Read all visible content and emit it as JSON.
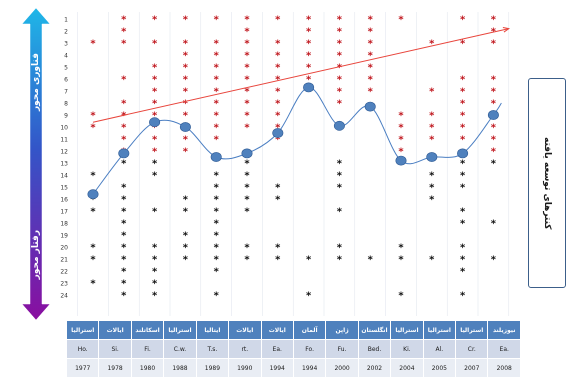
{
  "chart_data": {
    "type": "scatter",
    "rows": [
      "1",
      "2",
      "3",
      "4",
      "5",
      "6",
      "7",
      "8",
      "9",
      "10",
      "11",
      "12",
      "13",
      "14",
      "15",
      "16",
      "17",
      "18",
      "19",
      "20",
      "21",
      "22",
      "23",
      "24"
    ],
    "columns": [
      {
        "name": "استرالیا",
        "abbr": "Ho.",
        "year": "1977"
      },
      {
        "name": "ایالات",
        "abbr": "Si.",
        "year": "1978"
      },
      {
        "name": "اسکاتلند",
        "abbr": "Fi.",
        "year": "1980"
      },
      {
        "name": "استرالیا",
        "abbr": "C.w.",
        "year": "1988"
      },
      {
        "name": "ایتالیا",
        "abbr": "T.s.",
        "year": "1989"
      },
      {
        "name": "ایالات",
        "abbr": "rt.",
        "year": "1990"
      },
      {
        "name": "ایالات",
        "abbr": "Ea.",
        "year": "1994"
      },
      {
        "name": "آلمان",
        "abbr": "Fo.",
        "year": "1994"
      },
      {
        "name": "ژاپن",
        "abbr": "Fu.",
        "year": "2000"
      },
      {
        "name": "انگلستان",
        "abbr": "Bed.",
        "year": "2002"
      },
      {
        "name": "استرالیا",
        "abbr": "Ki.",
        "year": "2004"
      },
      {
        "name": "استرالیا",
        "abbr": "Al.",
        "year": "2005"
      },
      {
        "name": "استرالیا",
        "abbr": "Cr.",
        "year": "2007"
      },
      {
        "name": "نیوزیلند",
        "abbr": "Ea.",
        "year": "2008"
      }
    ],
    "red_stars": [
      [
        3,
        9,
        10
      ],
      [
        1,
        2,
        3,
        6,
        8,
        9,
        10,
        11,
        12
      ],
      [
        1,
        3,
        5,
        6,
        7,
        8,
        9,
        10,
        11,
        12
      ],
      [
        1,
        3,
        4,
        5,
        6,
        7,
        8,
        9,
        10,
        11,
        12
      ],
      [
        1,
        3,
        4,
        5,
        6,
        7,
        8,
        9,
        10,
        11
      ],
      [
        1,
        2,
        3,
        4,
        5,
        6,
        7,
        8,
        9,
        10
      ],
      [
        1,
        3,
        4,
        5,
        6,
        7,
        8,
        9,
        10,
        11
      ],
      [
        1,
        2,
        3,
        4,
        5,
        6
      ],
      [
        1,
        2,
        3,
        4,
        5,
        6,
        7,
        8
      ],
      [
        1,
        2,
        3,
        4,
        5,
        6,
        7
      ],
      [
        1,
        9,
        10,
        11,
        12
      ],
      [
        3,
        7,
        9,
        10,
        11
      ],
      [
        1,
        3,
        6,
        7,
        8,
        9,
        10,
        11
      ],
      [
        1,
        2,
        3,
        6,
        7,
        8,
        9,
        10,
        11,
        12
      ]
    ],
    "black_stars": [
      [
        14,
        16,
        17,
        20,
        21,
        23
      ],
      [
        13,
        15,
        16,
        17,
        18,
        19,
        20,
        21,
        22,
        23,
        24
      ],
      [
        13,
        14,
        17,
        20,
        21,
        22,
        23,
        24
      ],
      [
        16,
        17,
        19,
        20,
        21
      ],
      [
        14,
        15,
        16,
        17,
        18,
        19,
        20,
        21,
        22,
        24
      ],
      [
        13,
        14,
        15,
        16,
        17,
        20,
        21
      ],
      [
        15,
        16,
        20,
        21
      ],
      [
        21,
        24
      ],
      [
        13,
        14,
        15,
        17,
        20,
        21
      ],
      [
        21
      ],
      [
        20,
        21,
        24
      ],
      [
        14,
        15,
        16,
        21
      ],
      [
        13,
        14,
        15,
        17,
        18,
        20,
        21,
        22,
        24
      ],
      [
        13,
        18,
        21
      ]
    ],
    "trend_line": {
      "x": [
        1,
        14.5
      ],
      "y": [
        9.6,
        1.8
      ],
      "color": "#e8453c"
    },
    "curve_points": [
      15.6,
      12.2,
      9.6,
      10.0,
      12.5,
      12.2,
      10.5,
      6.7,
      9.9,
      8.3,
      12.8,
      12.5,
      12.2,
      9.0
    ],
    "curve_color": "#4a7ec2",
    "marker_color": "#4f81bd",
    "ylim": [
      1,
      24
    ],
    "y_inverted": true
  },
  "left_arrow": {
    "top_label": "فناوری محور",
    "bottom_label": "رفتار محور"
  },
  "side_label": "کنترهای توسعه یافته",
  "colors": {
    "red_star": "#c0171e",
    "black_star": "#111111",
    "arrow_top": "#1fb7e8",
    "arrow_bottom": "#8a0ea0",
    "table_header": "#4f81bd"
  }
}
